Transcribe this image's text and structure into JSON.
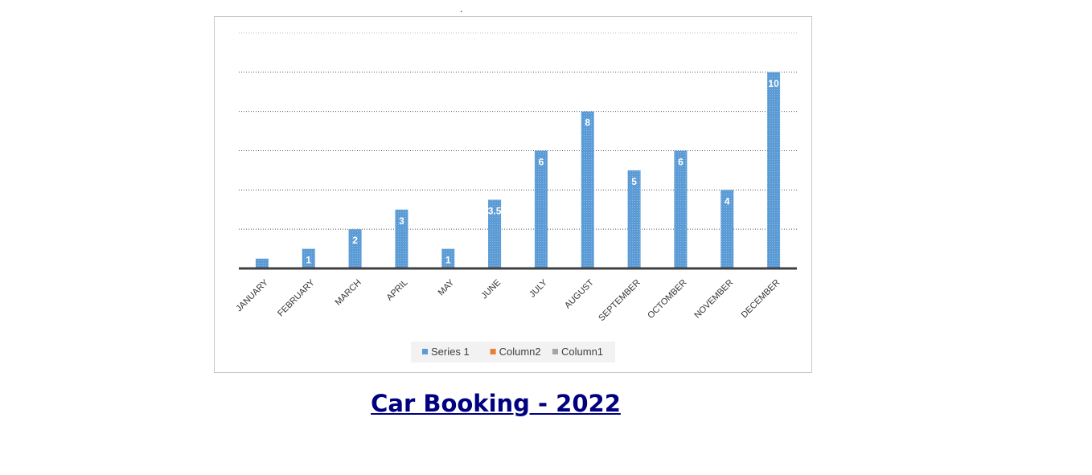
{
  "top_mark": ".",
  "caption": {
    "text": "Car Booking - 2022"
  },
  "chart_data": {
    "type": "bar",
    "title": "",
    "xlabel": "",
    "ylabel": "",
    "categories": [
      "JANUARY",
      "FEBRUARY",
      "MARCH",
      "APRIL",
      "MAY",
      "JUNE",
      "JULY",
      "AUGUST",
      "SEPTEMBER",
      "OCTOMBER",
      "NOVEMBER",
      "DECEMBER"
    ],
    "series": [
      {
        "name": "Series 1",
        "color": "#5b9bd5",
        "values": [
          0.5,
          1,
          2,
          3,
          1,
          3.5,
          6,
          8,
          5,
          6,
          4,
          10
        ],
        "labels": [
          "",
          "1",
          "2",
          "3",
          "1",
          "3.5",
          "6",
          "8",
          "5",
          "6",
          "4",
          "10"
        ]
      },
      {
        "name": "Column2",
        "color": "#ed7d31",
        "values": [
          0,
          0,
          0,
          0,
          0,
          0,
          0,
          0,
          0,
          0,
          0,
          0
        ]
      },
      {
        "name": "Column1",
        "color": "#a5a5a5",
        "values": [
          0,
          0,
          0,
          0,
          0,
          0,
          0,
          0,
          0,
          0,
          0,
          0
        ]
      }
    ],
    "ylim": [
      0,
      12
    ],
    "grid": true,
    "legend": "bottom"
  }
}
